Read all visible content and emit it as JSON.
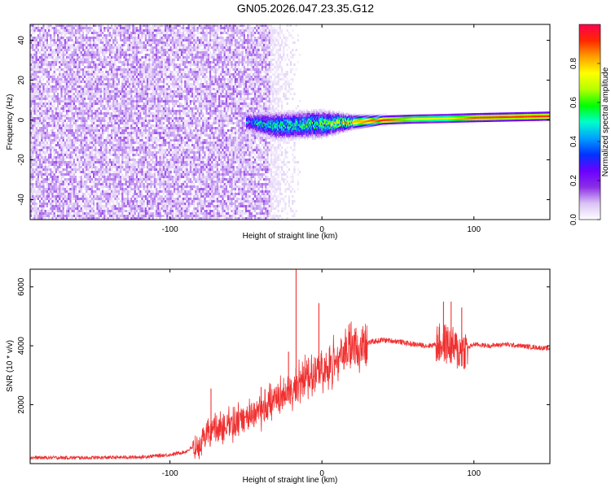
{
  "title": "GN05.2026.047.23.35.G12",
  "chart_data": [
    {
      "type": "heatmap",
      "xlabel": "Height of straight line (km)",
      "ylabel": "Frequency (Hz)",
      "xlim": [
        -192,
        150
      ],
      "ylim": [
        -50,
        48
      ],
      "xticks": [
        -100,
        0,
        100
      ],
      "yticks": [
        -40,
        -20,
        0,
        20,
        40
      ],
      "colorbar": {
        "label": "Normalized spectral amplitude",
        "range": [
          0,
          1
        ],
        "ticks": [
          "0.0",
          "0.2",
          "0.4",
          "0.6",
          "0.8"
        ],
        "colormap": [
          "#ffffff",
          "#d9c2f5",
          "#8c2ee6",
          "#6a00ff",
          "#0033ff",
          "#00a0ff",
          "#00ffcc",
          "#00ff00",
          "#b4ff00",
          "#ffff00",
          "#ffa000",
          "#ff2800",
          "#ff0050"
        ]
      },
      "noise_region": {
        "x": [
          -192,
          -35
        ],
        "freq": [
          -50,
          48
        ],
        "amplitude": 0.05
      },
      "signal_track": [
        {
          "x": -50,
          "freq_center": -1,
          "width": 4,
          "amplitude": 0.4
        },
        {
          "x": -30,
          "freq_center": -3,
          "width": 6,
          "amplitude": 0.5
        },
        {
          "x": 0,
          "freq_center": -2,
          "width": 6,
          "amplitude": 0.55
        },
        {
          "x": 20,
          "freq_center": -1,
          "width": 3,
          "amplitude": 0.8
        },
        {
          "x": 40,
          "freq_center": 0,
          "width": 2,
          "amplitude": 0.95
        },
        {
          "x": 60,
          "freq_center": 0.5,
          "width": 2,
          "amplitude": 0.75
        },
        {
          "x": 80,
          "freq_center": 0.8,
          "width": 2,
          "amplitude": 0.7
        },
        {
          "x": 100,
          "freq_center": 1.2,
          "width": 2,
          "amplitude": 0.9
        },
        {
          "x": 150,
          "freq_center": 2,
          "width": 2,
          "amplitude": 0.92
        }
      ]
    },
    {
      "type": "line",
      "xlabel": "Height of straight line (km)",
      "ylabel": "SNR (10 * v/v)",
      "xlim": [
        -192,
        150
      ],
      "ylim": [
        0,
        6600
      ],
      "xticks": [
        -100,
        0,
        100
      ],
      "yticks": [
        2000,
        4000,
        6000
      ],
      "color": "#f03030",
      "series": [
        {
          "x": [
            -192,
            -150,
            -120,
            -100,
            -90,
            -80,
            -75,
            -70,
            -60,
            -50,
            -40,
            -30,
            -20,
            -15,
            -10,
            0,
            10,
            20,
            30,
            40,
            50,
            60,
            70,
            80,
            85,
            90,
            95,
            100,
            110,
            120,
            130,
            140,
            150
          ],
          "y": [
            200,
            200,
            220,
            300,
            400,
            700,
            1100,
            1200,
            1300,
            1500,
            1800,
            2200,
            2500,
            2700,
            3000,
            3200,
            3500,
            3900,
            4100,
            4200,
            4150,
            4050,
            4000,
            4100,
            4000,
            3800,
            3900,
            4050,
            4000,
            4050,
            4000,
            3950,
            3900
          ]
        }
      ],
      "spikes": [
        {
          "x": -73,
          "y": 2550
        },
        {
          "x": -55,
          "y": 2000
        },
        {
          "x": -40,
          "y": 2600
        },
        {
          "x": -22,
          "y": 3800
        },
        {
          "x": -17,
          "y": 6600
        },
        {
          "x": -12,
          "y": 3300
        },
        {
          "x": -2,
          "y": 5450
        },
        {
          "x": 15,
          "y": 4050
        },
        {
          "x": 80,
          "y": 5500
        },
        {
          "x": 85,
          "y": 5500
        },
        {
          "x": 92,
          "y": 5300
        }
      ]
    }
  ]
}
